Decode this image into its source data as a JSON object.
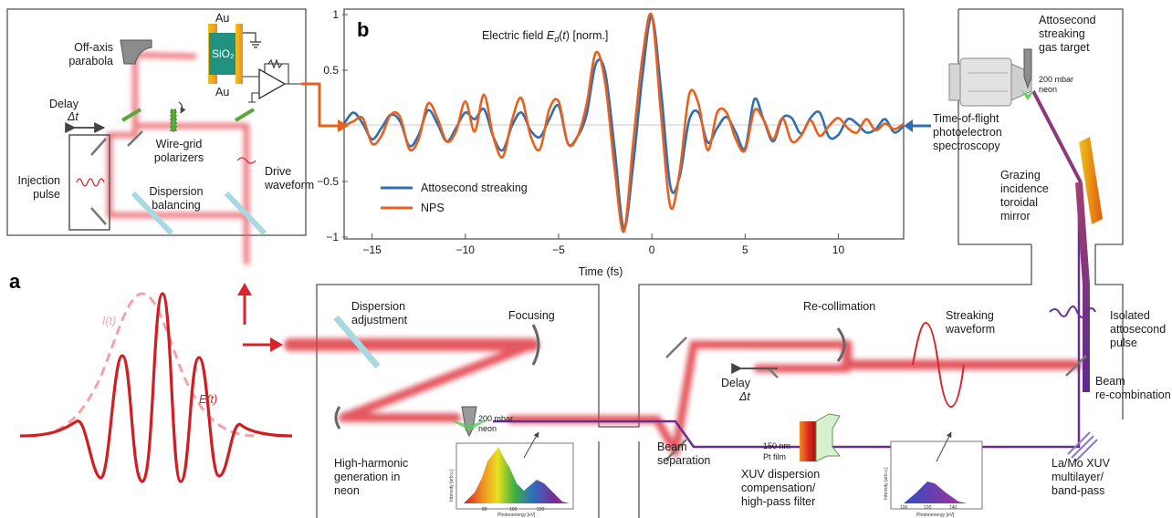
{
  "panel_labels": {
    "a": "a",
    "b": "b"
  },
  "setup": {
    "off_axis_parabola": "Off-axis\nparabola",
    "electrode_top": "Au",
    "dielectric": "SiO₂",
    "electrode_bottom": "Au",
    "delay": "Delay",
    "delay_symbol": "Δt",
    "injection_pulse": "Injection\npulse",
    "wire_grid": "Wire-grid\npolarizers",
    "drive_waveform": "Drive\nwaveform",
    "dispersion_balancing": "Dispersion\nbalancing"
  },
  "pulse_inset": {
    "intensity_label": "I(t)",
    "field_label": "E(t)"
  },
  "beamline": {
    "dispersion_adjustment": "Dispersion\nadjustment",
    "focusing": "Focusing",
    "hhg_pressure": "200 mbar\nneon",
    "hhg": "High-harmonic\ngeneration in\nneon",
    "beam_separation": "Beam\nseparation",
    "recollimation": "Re-collimation",
    "streaking_waveform": "Streaking\nwaveform",
    "delay2": "Delay",
    "delay2_symbol": "Δt",
    "pt_film": "150 nm\nPt film",
    "xuv_filter": "XUV dispersion\ncompensation/\nhigh-pass filter",
    "lamo": "La/Mo XUV\nmultilayer/\nband-pass",
    "beam_recombination": "Beam\nre-combination",
    "isolated_pulse": "Isolated\nattosecond\npulse",
    "toroidal": "Grazing\nincidence\ntoroidal\nmirror",
    "tof": "Time-of-flight\nphotoelectron\nspectroscopy",
    "gas_target": "Attosecond\nstreaking\ngas target",
    "target_pressure": "200 mbar\nneon"
  },
  "spectra": {
    "broad": {
      "xlabel": "Photonenergy [eV]",
      "ylabel": "Intensity [arb.u.]",
      "ticks": [
        "80",
        "100",
        "120"
      ]
    },
    "filtered": {
      "xlabel": "Photonenergy [eV]",
      "ylabel": "Intensity [arb.u.]",
      "ticks": [
        "100",
        "120",
        "140"
      ]
    }
  },
  "colors": {
    "beam": "#d9232d",
    "xuv": "#6a2c91",
    "attosecond": "#2f6eb5",
    "nps": "#e8601c",
    "arrow": "#e8601c"
  },
  "chart_data": {
    "type": "line",
    "title": "Electric field E_d(t) [norm.]",
    "xlabel": "Time (fs)",
    "ylabel": "",
    "xlim": [
      -16.5,
      13.5
    ],
    "ylim": [
      -1,
      1
    ],
    "xticks": [
      -15,
      -10,
      -5,
      0,
      5,
      10
    ],
    "yticks": [
      1,
      0.5,
      -0.5,
      -1
    ],
    "x_tick_labels": [
      "−15",
      "−10",
      "−5",
      "0",
      "5",
      "10"
    ],
    "y_tick_labels": [
      "1",
      "0.5",
      "−0.5",
      "−1"
    ],
    "legend_position": "bottom-left",
    "x": [
      -16.5,
      -16.0,
      -15.5,
      -15.0,
      -14.5,
      -14.0,
      -13.5,
      -13.0,
      -12.5,
      -12.0,
      -11.5,
      -11.0,
      -10.5,
      -10.0,
      -9.5,
      -9.0,
      -8.5,
      -8.0,
      -7.5,
      -7.0,
      -6.5,
      -6.0,
      -5.5,
      -5.0,
      -4.5,
      -4.0,
      -3.5,
      -3.0,
      -2.5,
      -2.0,
      -1.5,
      -1.0,
      -0.5,
      0.0,
      0.5,
      1.0,
      1.5,
      2.0,
      2.5,
      3.0,
      3.5,
      4.0,
      4.5,
      5.0,
      5.5,
      6.0,
      6.5,
      7.0,
      7.5,
      8.0,
      8.5,
      9.0,
      9.5,
      10.0,
      10.5,
      11.0,
      11.5,
      12.0,
      12.5,
      13.0,
      13.5
    ],
    "series": [
      {
        "name": "Attosecond streaking",
        "color": "#2f6eb5",
        "values": [
          0.02,
          0.12,
          0.02,
          -0.12,
          -0.02,
          0.1,
          0.04,
          -0.18,
          -0.08,
          0.14,
          0.02,
          -0.14,
          -0.02,
          0.12,
          0.06,
          0.15,
          -0.1,
          -0.22,
          0.0,
          0.12,
          -0.04,
          -0.1,
          0.06,
          0.18,
          -0.16,
          -0.1,
          0.1,
          0.56,
          0.48,
          -0.2,
          -0.92,
          -0.35,
          0.45,
          0.98,
          0.3,
          -0.55,
          -0.45,
          0.05,
          0.12,
          -0.15,
          -0.02,
          0.08,
          -0.06,
          -0.2,
          0.24,
          0.05,
          -0.14,
          0.07,
          0.07,
          -0.07,
          0.07,
          0.12,
          -0.1,
          -0.08,
          0.06,
          0.02,
          -0.06,
          -0.03,
          0.06,
          -0.06,
          0.0
        ]
      },
      {
        "name": "NPS",
        "color": "#e8601c",
        "values": [
          0.0,
          0.04,
          0.07,
          -0.16,
          -0.09,
          0.1,
          0.08,
          -0.21,
          -0.12,
          0.2,
          0.07,
          -0.14,
          -0.05,
          0.22,
          -0.05,
          0.28,
          -0.1,
          -0.28,
          0.05,
          0.25,
          -0.09,
          -0.21,
          0.15,
          0.22,
          -0.16,
          -0.1,
          0.19,
          0.66,
          0.38,
          -0.38,
          -0.95,
          -0.15,
          0.62,
          0.99,
          0.08,
          -0.73,
          -0.4,
          0.28,
          0.2,
          -0.22,
          0.12,
          0.12,
          -0.12,
          -0.22,
          0.14,
          0.05,
          -0.12,
          0.07,
          -0.14,
          -0.09,
          0.05,
          -0.09,
          0.0,
          0.07,
          -0.02,
          -0.06,
          0.06,
          -0.04,
          0.02,
          -0.03,
          0.02
        ]
      }
    ]
  }
}
